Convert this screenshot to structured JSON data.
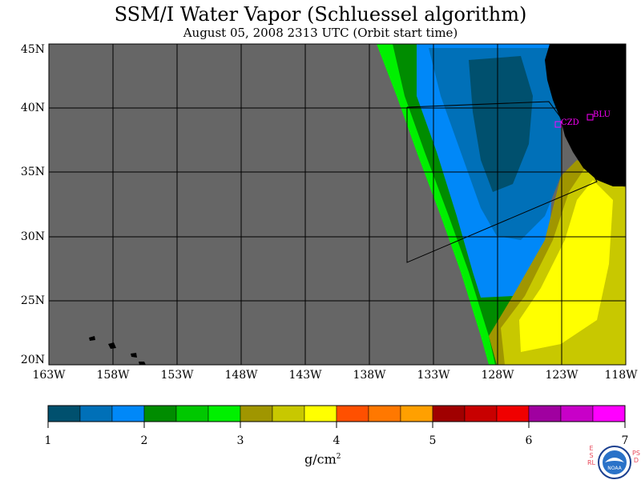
{
  "header": {
    "title": "SSM/I Water Vapor (Schluessel algorithm)",
    "subtitle": "August 05, 2008  2313 UTC  (Orbit start time)"
  },
  "map": {
    "lat_labels": [
      "45N",
      "40N",
      "35N",
      "30N",
      "25N",
      "20N"
    ],
    "lon_labels": [
      "163W",
      "158W",
      "153W",
      "148W",
      "143W",
      "138W",
      "133W",
      "128W",
      "123W",
      "118W"
    ],
    "stations": [
      "CZD",
      "BLU"
    ],
    "colors": {
      "no_data": "#666666",
      "land": "#000000",
      "grid": "#000000",
      "station": "#ff00ff"
    }
  },
  "colorbar": {
    "ticks": [
      "1",
      "2",
      "3",
      "4",
      "5",
      "6",
      "7"
    ],
    "colors": [
      "#00506e",
      "#0070b8",
      "#0088f8",
      "#008c00",
      "#00c800",
      "#00f000",
      "#a09600",
      "#c8c800",
      "#ffff00",
      "#ff5000",
      "#ff7800",
      "#ffa000",
      "#a00000",
      "#c80000",
      "#f00000",
      "#a000a0",
      "#c800c8",
      "#ff00ff"
    ],
    "units_text": "g/cm",
    "units_exp": "2"
  },
  "logo": {
    "left_text": "ESRL",
    "right_text": "PSD",
    "center_text": "NOAA"
  }
}
